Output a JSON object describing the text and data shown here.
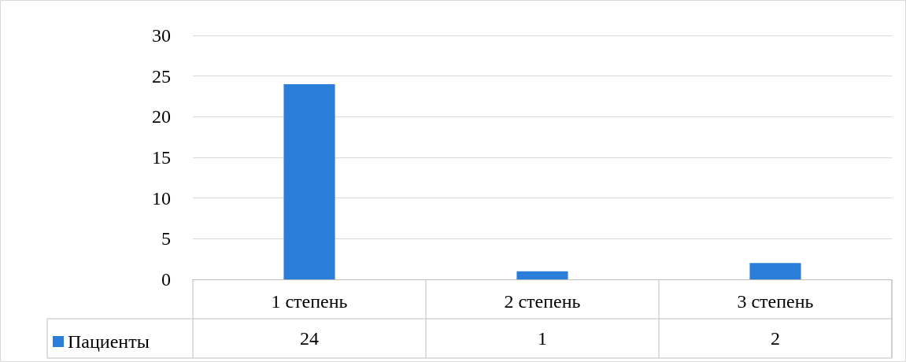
{
  "chart_data": {
    "type": "bar",
    "categories": [
      "1 степень",
      "2 степень",
      "3 степень"
    ],
    "series": [
      {
        "name": "Пациенты",
        "color": "#2a7dd8",
        "values": [
          24,
          1,
          2
        ]
      }
    ],
    "ylim": [
      0,
      30
    ],
    "yticks": [
      0,
      5,
      10,
      15,
      20,
      25,
      30
    ],
    "grid": "y",
    "legend": "bottom left",
    "data_labels": true
  }
}
